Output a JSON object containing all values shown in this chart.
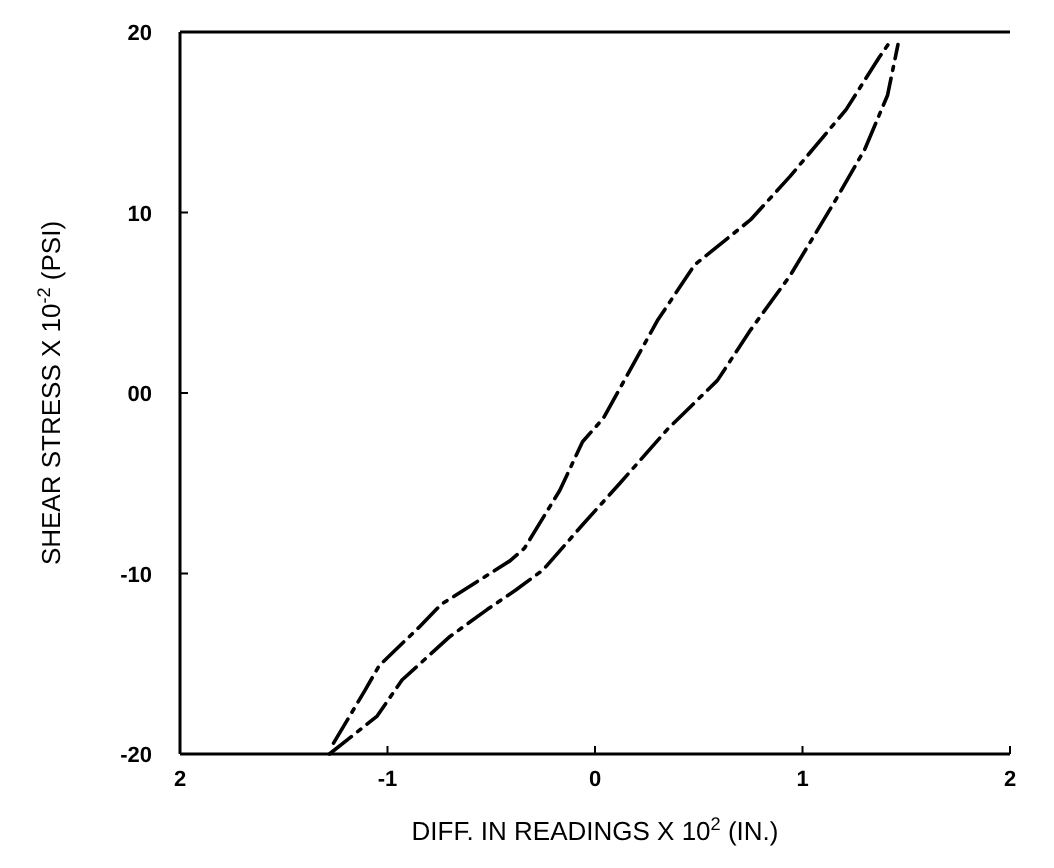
{
  "chart_data": {
    "type": "line",
    "xlabel": "DIFF. IN READINGS X 10$^{2}$ (IN.)",
    "ylabel": "SHEAR STRESS X 10$^{-2}$ (PSI)",
    "xlim": [
      -2,
      2
    ],
    "ylim": [
      -20,
      20
    ],
    "xticks": [
      {
        "value": -2,
        "label": "2"
      },
      -1,
      0,
      1,
      2
    ],
    "yticks": [
      20,
      10,
      {
        "value": 0,
        "label": "00"
      },
      -10,
      -20
    ],
    "line_style": "dashed",
    "series": [
      {
        "color": "#000000",
        "x": [
          -1.26,
          -1.11,
          -1.04,
          -0.85,
          -0.74,
          -0.41,
          -0.34,
          -0.17,
          -0.06,
          0.04,
          0.3,
          0.48,
          0.75,
          0.94,
          1.21,
          1.37,
          1.43
        ],
        "values": [
          -19.4,
          -16.5,
          -15.1,
          -13,
          -11.7,
          -9.3,
          -8.6,
          -5.4,
          -2.7,
          -1.4,
          4,
          7.1,
          9.6,
          12,
          15.7,
          18.6,
          19.6
        ]
      },
      {
        "color": "#000000",
        "x": [
          -1.28,
          -1.17,
          -1.05,
          -0.93,
          -0.7,
          -0.52,
          -0.38,
          -0.25,
          -0.06,
          0.12,
          0.35,
          0.59,
          0.75,
          0.94,
          1.16,
          1.3,
          1.41,
          1.46
        ],
        "values": [
          -20,
          -19,
          -17.9,
          -15.9,
          -13.5,
          -12,
          -10.9,
          -9.8,
          -7.3,
          -5,
          -2,
          0.7,
          3.5,
          6.5,
          10.7,
          13.5,
          16.5,
          19.3
        ]
      }
    ]
  }
}
